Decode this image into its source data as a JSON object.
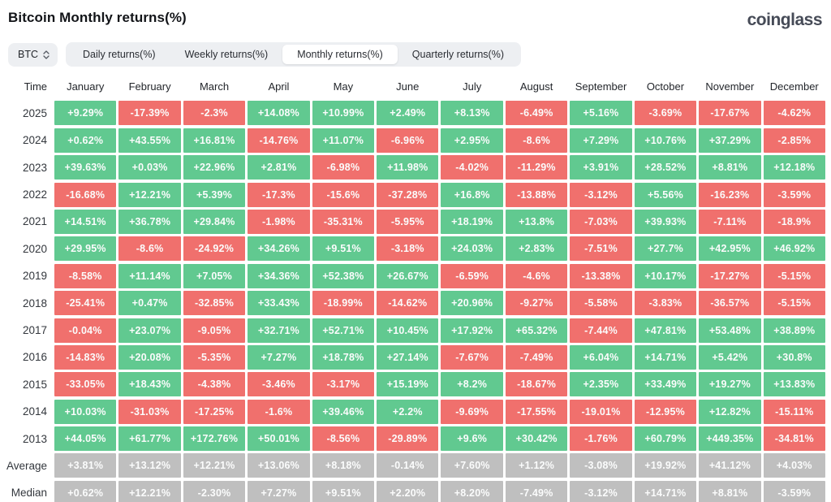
{
  "header": {
    "title": "Bitcoin Monthly returns(%)",
    "brand": "coinglass"
  },
  "controls": {
    "symbol_select": {
      "value": "BTC"
    },
    "tabs": [
      {
        "label": "Daily returns(%)",
        "active": false
      },
      {
        "label": "Weekly returns(%)",
        "active": false
      },
      {
        "label": "Monthly returns(%)",
        "active": true
      },
      {
        "label": "Quarterly returns(%)",
        "active": false
      }
    ]
  },
  "chart_data": {
    "type": "table",
    "columns": [
      "Time",
      "January",
      "February",
      "March",
      "April",
      "May",
      "June",
      "July",
      "August",
      "September",
      "October",
      "November",
      "December"
    ],
    "rows": [
      {
        "time": "2025",
        "neutral": false,
        "values": [
          "+9.29%",
          "-17.39%",
          "-2.3%",
          "+14.08%",
          "+10.99%",
          "+2.49%",
          "+8.13%",
          "-6.49%",
          "+5.16%",
          "-3.69%",
          "-17.67%",
          "-4.62%"
        ]
      },
      {
        "time": "2024",
        "neutral": false,
        "values": [
          "+0.62%",
          "+43.55%",
          "+16.81%",
          "-14.76%",
          "+11.07%",
          "-6.96%",
          "+2.95%",
          "-8.6%",
          "+7.29%",
          "+10.76%",
          "+37.29%",
          "-2.85%"
        ]
      },
      {
        "time": "2023",
        "neutral": false,
        "values": [
          "+39.63%",
          "+0.03%",
          "+22.96%",
          "+2.81%",
          "-6.98%",
          "+11.98%",
          "-4.02%",
          "-11.29%",
          "+3.91%",
          "+28.52%",
          "+8.81%",
          "+12.18%"
        ]
      },
      {
        "time": "2022",
        "neutral": false,
        "values": [
          "-16.68%",
          "+12.21%",
          "+5.39%",
          "-17.3%",
          "-15.6%",
          "-37.28%",
          "+16.8%",
          "-13.88%",
          "-3.12%",
          "+5.56%",
          "-16.23%",
          "-3.59%"
        ]
      },
      {
        "time": "2021",
        "neutral": false,
        "values": [
          "+14.51%",
          "+36.78%",
          "+29.84%",
          "-1.98%",
          "-35.31%",
          "-5.95%",
          "+18.19%",
          "+13.8%",
          "-7.03%",
          "+39.93%",
          "-7.11%",
          "-18.9%"
        ]
      },
      {
        "time": "2020",
        "neutral": false,
        "values": [
          "+29.95%",
          "-8.6%",
          "-24.92%",
          "+34.26%",
          "+9.51%",
          "-3.18%",
          "+24.03%",
          "+2.83%",
          "-7.51%",
          "+27.7%",
          "+42.95%",
          "+46.92%"
        ]
      },
      {
        "time": "2019",
        "neutral": false,
        "values": [
          "-8.58%",
          "+11.14%",
          "+7.05%",
          "+34.36%",
          "+52.38%",
          "+26.67%",
          "-6.59%",
          "-4.6%",
          "-13.38%",
          "+10.17%",
          "-17.27%",
          "-5.15%"
        ]
      },
      {
        "time": "2018",
        "neutral": false,
        "values": [
          "-25.41%",
          "+0.47%",
          "-32.85%",
          "+33.43%",
          "-18.99%",
          "-14.62%",
          "+20.96%",
          "-9.27%",
          "-5.58%",
          "-3.83%",
          "-36.57%",
          "-5.15%"
        ]
      },
      {
        "time": "2017",
        "neutral": false,
        "values": [
          "-0.04%",
          "+23.07%",
          "-9.05%",
          "+32.71%",
          "+52.71%",
          "+10.45%",
          "+17.92%",
          "+65.32%",
          "-7.44%",
          "+47.81%",
          "+53.48%",
          "+38.89%"
        ]
      },
      {
        "time": "2016",
        "neutral": false,
        "values": [
          "-14.83%",
          "+20.08%",
          "-5.35%",
          "+7.27%",
          "+18.78%",
          "+27.14%",
          "-7.67%",
          "-7.49%",
          "+6.04%",
          "+14.71%",
          "+5.42%",
          "+30.8%"
        ]
      },
      {
        "time": "2015",
        "neutral": false,
        "values": [
          "-33.05%",
          "+18.43%",
          "-4.38%",
          "-3.46%",
          "-3.17%",
          "+15.19%",
          "+8.2%",
          "-18.67%",
          "+2.35%",
          "+33.49%",
          "+19.27%",
          "+13.83%"
        ]
      },
      {
        "time": "2014",
        "neutral": false,
        "values": [
          "+10.03%",
          "-31.03%",
          "-17.25%",
          "-1.6%",
          "+39.46%",
          "+2.2%",
          "-9.69%",
          "-17.55%",
          "-19.01%",
          "-12.95%",
          "+12.82%",
          "-15.11%"
        ]
      },
      {
        "time": "2013",
        "neutral": false,
        "values": [
          "+44.05%",
          "+61.77%",
          "+172.76%",
          "+50.01%",
          "-8.56%",
          "-29.89%",
          "+9.6%",
          "+30.42%",
          "-1.76%",
          "+60.79%",
          "+449.35%",
          "-34.81%"
        ]
      },
      {
        "time": "Average",
        "neutral": true,
        "values": [
          "+3.81%",
          "+13.12%",
          "+12.21%",
          "+13.06%",
          "+8.18%",
          "-0.14%",
          "+7.60%",
          "+1.12%",
          "-3.08%",
          "+19.92%",
          "+41.12%",
          "+4.03%"
        ]
      },
      {
        "time": "Median",
        "neutral": true,
        "values": [
          "+0.62%",
          "+12.21%",
          "-2.30%",
          "+7.27%",
          "+9.51%",
          "+2.20%",
          "+8.20%",
          "-7.49%",
          "-3.12%",
          "+14.71%",
          "+8.81%",
          "-3.59%"
        ]
      }
    ],
    "colors": {
      "positive": "#61c990",
      "negative": "#f0706d",
      "neutral": "#bfbfbf"
    }
  }
}
